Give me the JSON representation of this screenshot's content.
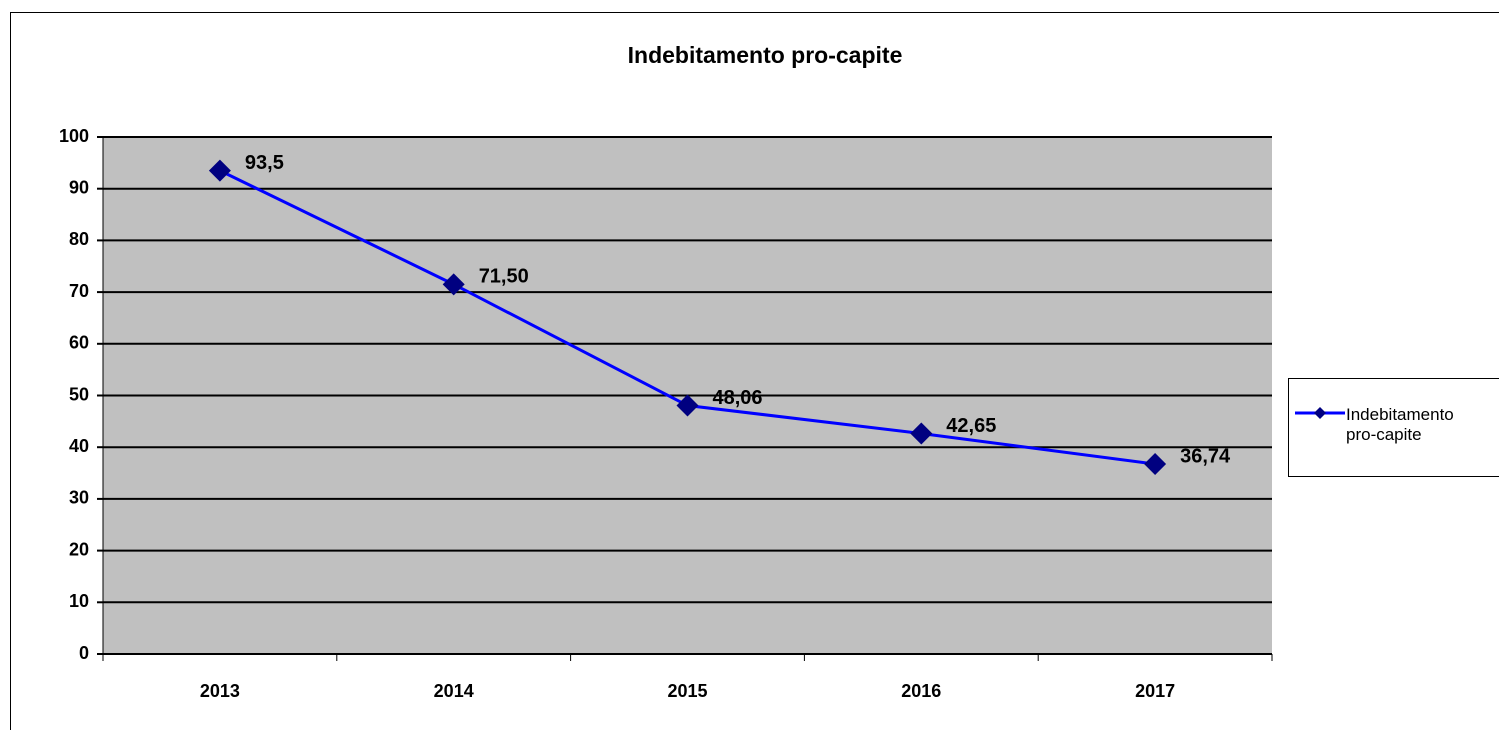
{
  "chart_data": {
    "type": "line",
    "title": "Indebitamento pro-capite",
    "categories": [
      "2013",
      "2014",
      "2015",
      "2016",
      "2017"
    ],
    "series": [
      {
        "name": "Indebitamento pro-capite",
        "color": "#0000ff",
        "marker_color": "#000080",
        "values": [
          93.5,
          71.5,
          48.06,
          42.65,
          36.74
        ],
        "value_labels": [
          "93,5",
          "71,50",
          "48,06",
          "42,65",
          "36,74"
        ]
      }
    ],
    "ylim": [
      0,
      100
    ],
    "yticks": [
      0,
      10,
      20,
      30,
      40,
      50,
      60,
      70,
      80,
      90,
      100
    ],
    "grid": true,
    "legend": "right"
  }
}
